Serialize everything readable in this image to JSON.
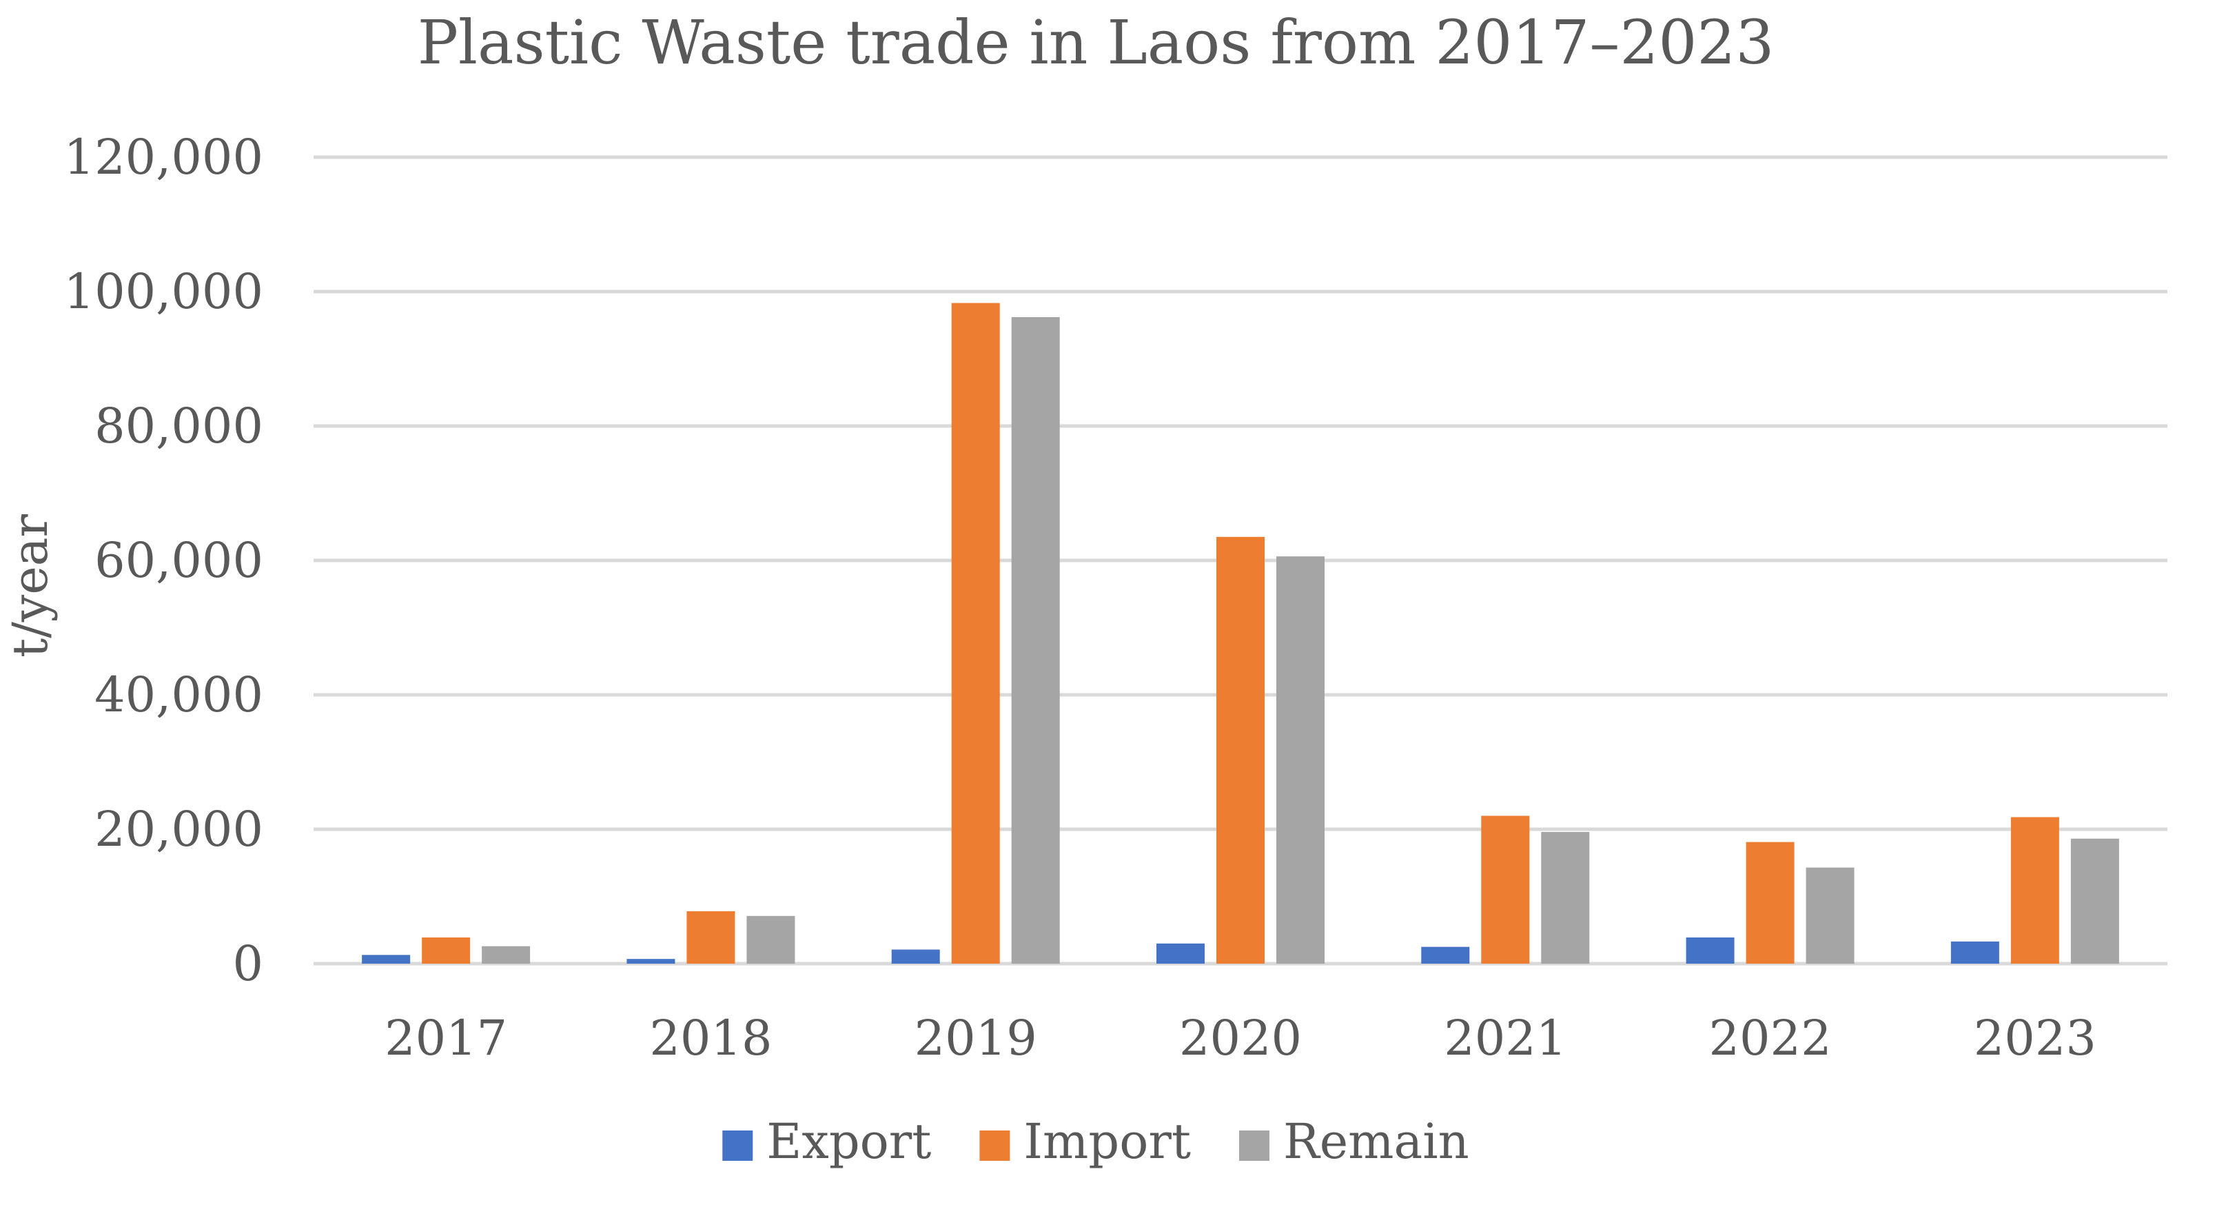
{
  "chart_data": {
    "type": "bar",
    "title": "Plastic Waste trade in Laos from 2017–2023",
    "xlabel": "",
    "ylabel": "t/year",
    "categories": [
      "2017",
      "2018",
      "2019",
      "2020",
      "2021",
      "2022",
      "2023"
    ],
    "series": [
      {
        "name": "Export",
        "color": "#4472C4",
        "values": [
          1300,
          700,
          2100,
          3000,
          2500,
          3900,
          3300
        ]
      },
      {
        "name": "Import",
        "color": "#ED7D31",
        "values": [
          3900,
          7800,
          98300,
          63500,
          22000,
          18100,
          21800
        ]
      },
      {
        "name": "Remain",
        "color": "#A5A5A5",
        "values": [
          2600,
          7100,
          96200,
          60600,
          19600,
          14300,
          18600
        ]
      }
    ],
    "ylim": [
      0,
      120000
    ],
    "yticks": [
      0,
      20000,
      40000,
      60000,
      80000,
      100000,
      120000
    ],
    "ytick_labels": [
      "0",
      "20,000",
      "40,000",
      "60,000",
      "80,000",
      "100,000",
      "120,000"
    ],
    "grid": true,
    "legend_position": "bottom",
    "gridline_color": "#D9D9D9"
  }
}
